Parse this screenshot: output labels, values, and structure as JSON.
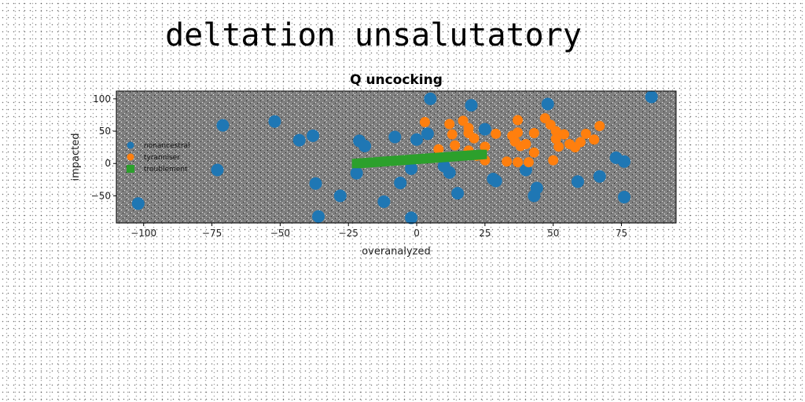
{
  "headline": "deltation unsalutatory",
  "chart_data": {
    "type": "scatter",
    "title": "Q uncocking",
    "xlabel": "overanalyzed",
    "ylabel": "impacted",
    "xlim": [
      -110,
      95
    ],
    "ylim": [
      -92,
      112
    ],
    "xticks": [
      -100,
      -75,
      -50,
      -25,
      0,
      25,
      50,
      75
    ],
    "yticks": [
      -50,
      0,
      50,
      100
    ],
    "grid": false,
    "legend_position": "center-left",
    "background": "#808080",
    "series": [
      {
        "name": "nonancestral",
        "color": "#1f77b4",
        "marker": "circle",
        "points": [
          [
            5,
            100
          ],
          [
            86,
            103
          ],
          [
            -102,
            -62
          ],
          [
            -71,
            59
          ],
          [
            -52,
            65
          ],
          [
            -43,
            36
          ],
          [
            -38,
            43
          ],
          [
            -73,
            -10
          ],
          [
            -37,
            -31
          ],
          [
            -36,
            -82
          ],
          [
            -28,
            -50
          ],
          [
            -22,
            -15
          ],
          [
            -21,
            35
          ],
          [
            -19,
            27
          ],
          [
            -12,
            -59
          ],
          [
            -8,
            41
          ],
          [
            -6,
            -30
          ],
          [
            -2,
            -84
          ],
          [
            0,
            37
          ],
          [
            4,
            46
          ],
          [
            10,
            -4
          ],
          [
            12,
            -14
          ],
          [
            15,
            -46
          ],
          [
            20,
            90
          ],
          [
            25,
            53
          ],
          [
            28,
            -24
          ],
          [
            29,
            -27
          ],
          [
            44,
            -38
          ],
          [
            48,
            92
          ],
          [
            43,
            -50
          ],
          [
            40,
            -10
          ],
          [
            59,
            -28
          ],
          [
            67,
            -20
          ],
          [
            73,
            9
          ],
          [
            76,
            3
          ],
          [
            76,
            -52
          ],
          [
            -2,
            -8
          ]
        ]
      },
      {
        "name": "tyranniser",
        "color": "#ff7f0e",
        "marker": "circle",
        "points": [
          [
            3,
            64
          ],
          [
            12,
            61
          ],
          [
            13,
            45
          ],
          [
            17,
            66
          ],
          [
            19,
            47
          ],
          [
            19,
            55
          ],
          [
            21,
            39
          ],
          [
            25,
            26
          ],
          [
            25,
            5
          ],
          [
            29,
            46
          ],
          [
            33,
            3
          ],
          [
            35,
            43
          ],
          [
            36,
            34
          ],
          [
            37,
            67
          ],
          [
            37,
            48
          ],
          [
            38,
            27
          ],
          [
            37,
            2
          ],
          [
            40,
            30
          ],
          [
            41,
            2
          ],
          [
            43,
            47
          ],
          [
            43,
            17
          ],
          [
            47,
            70
          ],
          [
            49,
            60
          ],
          [
            50,
            5
          ],
          [
            51,
            50
          ],
          [
            51,
            38
          ],
          [
            52,
            26
          ],
          [
            54,
            45
          ],
          [
            56,
            30
          ],
          [
            58,
            25
          ],
          [
            60,
            33
          ],
          [
            62,
            46
          ],
          [
            67,
            58
          ],
          [
            65,
            37
          ],
          [
            14,
            28
          ],
          [
            19,
            20
          ],
          [
            22,
            12
          ],
          [
            8,
            22
          ]
        ]
      },
      {
        "name": "troublement",
        "color": "#2ca02c",
        "marker": "square",
        "x_start": -22,
        "x_end": 24,
        "y_start": 0,
        "y_end": 14,
        "count": 60
      }
    ]
  }
}
